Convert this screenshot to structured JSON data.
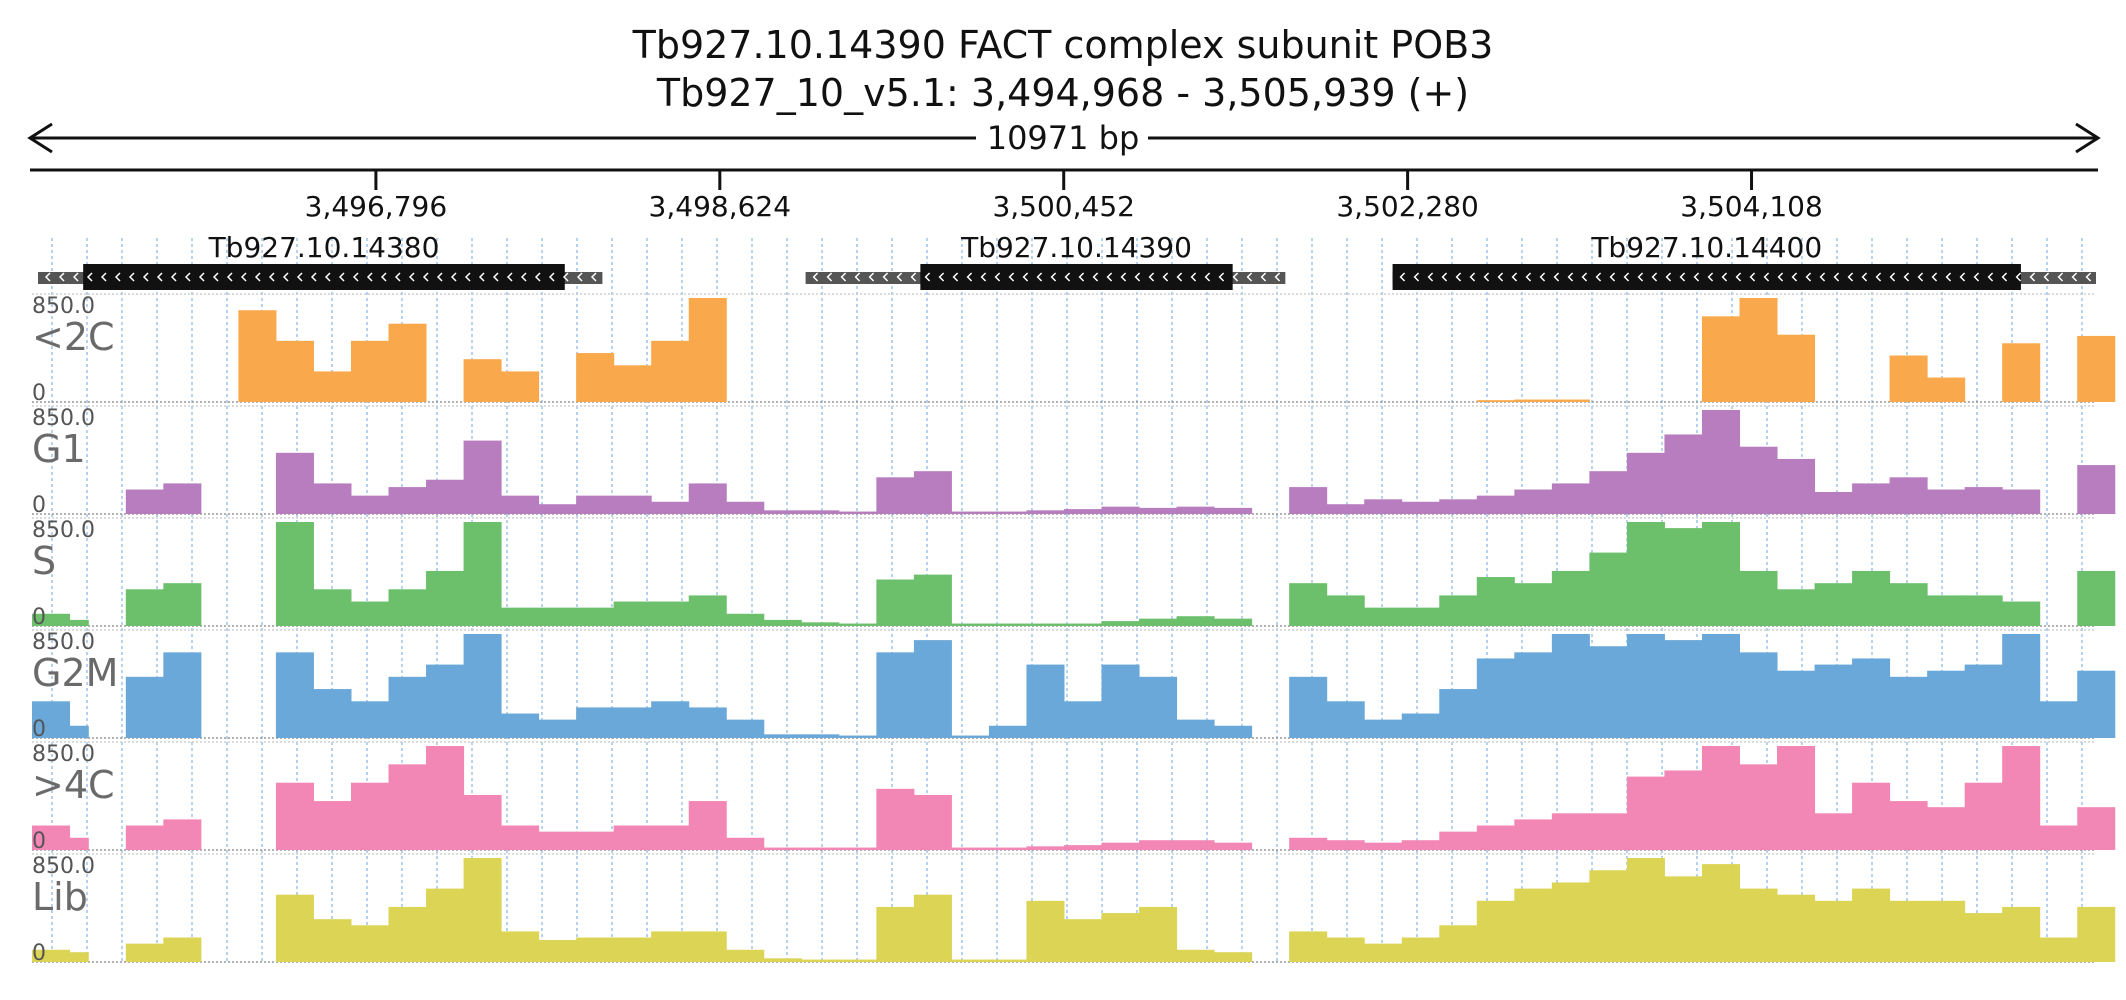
{
  "chart_data": {
    "type": "area",
    "title": "Tb927.10.14390  FACT complex subunit POB3",
    "subtitle": "Tb927_10_v5.1: 3,494,968 - 3,505,939 (+)",
    "span_label": "10971 bp",
    "xlim": [
      3494968,
      3505939
    ],
    "x_ticks": [
      3496796,
      3498624,
      3500452,
      3502280,
      3504108
    ],
    "x_tick_labels": [
      "3,496,796",
      "3,498,624",
      "3,500,452",
      "3,502,280",
      "3,504,108"
    ],
    "grid": true,
    "genes": [
      {
        "name": "Tb927.10.14380",
        "utr": [
          3495000,
          3498000
        ],
        "cds": [
          3495240,
          3497800
        ],
        "strand": "-"
      },
      {
        "name": "Tb927.10.14390",
        "utr": [
          3499080,
          3501630
        ],
        "cds": [
          3499690,
          3501350
        ],
        "strand": "-"
      },
      {
        "name": "Tb927.10.14400",
        "utr": [
          3502200,
          3505939
        ],
        "cds": [
          3502200,
          3505540
        ],
        "strand": "-"
      }
    ],
    "ylim": [
      0,
      850
    ],
    "ymax_label": "850.0",
    "ymin_label": "0",
    "x": [
      3494968,
      3495168,
      3495368,
      3495568,
      3495768,
      3495968,
      3496168,
      3496368,
      3496568,
      3496768,
      3496968,
      3497168,
      3497368,
      3497568,
      3497768,
      3497968,
      3498168,
      3498368,
      3498568,
      3498768,
      3498968,
      3499168,
      3499368,
      3499568,
      3499768,
      3499968,
      3500168,
      3500368,
      3500568,
      3500768,
      3500968,
      3501168,
      3501368,
      3501568,
      3501768,
      3501968,
      3502168,
      3502368,
      3502568,
      3502768,
      3502968,
      3503168,
      3503368,
      3503568,
      3503768,
      3503968,
      3504168,
      3504368,
      3504568,
      3504768,
      3504968,
      3505168,
      3505368,
      3505568,
      3505768,
      3505939
    ],
    "series": [
      {
        "name": "<2C",
        "color": "#f9a94b",
        "values": [
          0,
          0,
          0,
          0,
          0,
          0,
          750,
          500,
          250,
          500,
          640,
          0,
          350,
          250,
          0,
          400,
          300,
          500,
          850,
          0,
          0,
          0,
          0,
          0,
          0,
          0,
          0,
          0,
          0,
          0,
          0,
          0,
          0,
          0,
          0,
          0,
          0,
          0,
          0,
          15,
          20,
          20,
          0,
          0,
          0,
          700,
          850,
          550,
          0,
          0,
          380,
          200,
          0,
          480,
          0,
          540
        ]
      },
      {
        "name": "G1",
        "color": "#b77dbf",
        "values": [
          0,
          0,
          0,
          200,
          250,
          0,
          0,
          500,
          250,
          150,
          220,
          280,
          600,
          150,
          80,
          150,
          150,
          100,
          250,
          100,
          30,
          30,
          20,
          300,
          350,
          20,
          20,
          30,
          40,
          60,
          50,
          60,
          50,
          0,
          220,
          80,
          120,
          100,
          120,
          150,
          200,
          250,
          350,
          500,
          650,
          850,
          550,
          450,
          180,
          250,
          300,
          200,
          220,
          200,
          0,
          400
        ]
      },
      {
        "name": "S",
        "color": "#6cc06b",
        "values": [
          100,
          50,
          0,
          300,
          350,
          0,
          0,
          850,
          300,
          200,
          300,
          450,
          850,
          150,
          150,
          150,
          200,
          200,
          250,
          100,
          50,
          30,
          20,
          380,
          420,
          20,
          20,
          20,
          20,
          40,
          60,
          80,
          60,
          0,
          350,
          250,
          150,
          150,
          250,
          400,
          350,
          450,
          600,
          850,
          800,
          850,
          450,
          300,
          350,
          450,
          350,
          250,
          250,
          200,
          0,
          450
        ]
      },
      {
        "name": "G2M",
        "color": "#6aa8d9",
        "values": [
          300,
          100,
          0,
          500,
          700,
          0,
          0,
          700,
          400,
          300,
          500,
          600,
          850,
          200,
          150,
          250,
          250,
          300,
          250,
          150,
          30,
          30,
          20,
          700,
          800,
          20,
          100,
          600,
          300,
          600,
          500,
          150,
          100,
          0,
          500,
          300,
          150,
          200,
          400,
          650,
          700,
          850,
          750,
          850,
          800,
          850,
          700,
          550,
          600,
          650,
          500,
          550,
          600,
          850,
          300,
          550
        ]
      },
      {
        "name": ">4C",
        "color": "#f287b5",
        "values": [
          200,
          100,
          0,
          200,
          250,
          0,
          0,
          550,
          400,
          550,
          700,
          850,
          450,
          200,
          150,
          150,
          200,
          200,
          400,
          100,
          20,
          20,
          20,
          500,
          450,
          20,
          20,
          30,
          40,
          60,
          80,
          80,
          60,
          0,
          100,
          80,
          60,
          80,
          150,
          200,
          250,
          300,
          300,
          600,
          650,
          850,
          700,
          850,
          300,
          550,
          400,
          350,
          550,
          850,
          200,
          350
        ]
      },
      {
        "name": "Lib",
        "color": "#dbd455",
        "values": [
          100,
          80,
          0,
          150,
          200,
          0,
          0,
          550,
          350,
          300,
          450,
          600,
          850,
          250,
          180,
          200,
          200,
          250,
          250,
          100,
          30,
          20,
          20,
          450,
          550,
          20,
          20,
          500,
          350,
          400,
          450,
          100,
          80,
          0,
          250,
          200,
          150,
          200,
          300,
          500,
          600,
          650,
          750,
          850,
          700,
          800,
          600,
          550,
          500,
          600,
          500,
          500,
          400,
          450,
          200,
          450
        ]
      }
    ]
  }
}
